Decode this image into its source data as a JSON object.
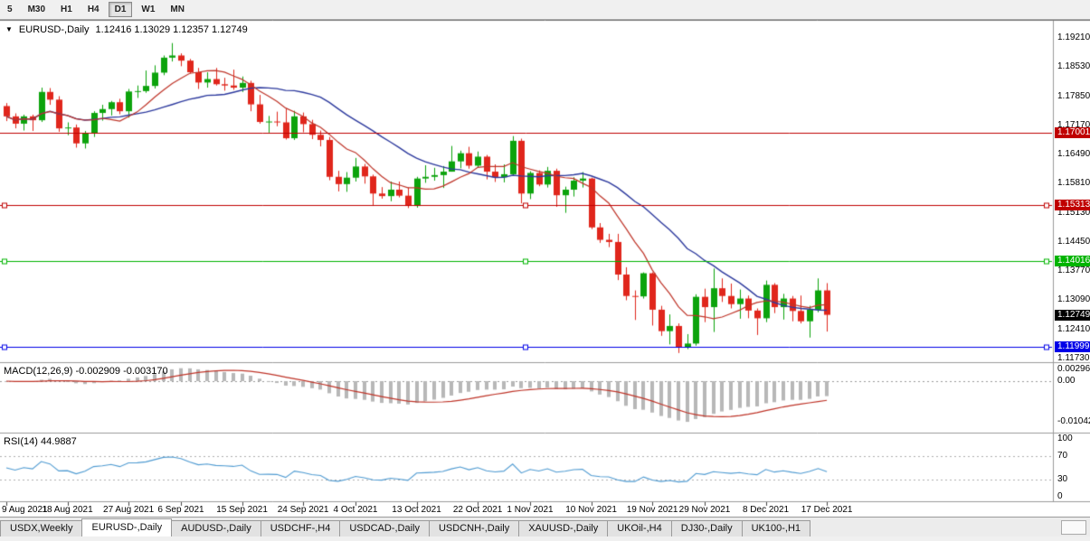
{
  "toolbar": {
    "timeframes": [
      "5",
      "M30",
      "H1",
      "H4",
      "D1",
      "W1",
      "MN"
    ],
    "active": "D1"
  },
  "header": {
    "dropdown_icon": "▼",
    "title": "EURUSD-,Daily",
    "ohlc_text": "1.12416 1.13029 1.12357 1.12749"
  },
  "tabs": [
    {
      "label": "USDX,Weekly",
      "active": false
    },
    {
      "label": "EURUSD-,Daily",
      "active": true
    },
    {
      "label": "AUDUSD-,Daily",
      "active": false
    },
    {
      "label": "USDCHF-,H4",
      "active": false
    },
    {
      "label": "USDCAD-,Daily",
      "active": false
    },
    {
      "label": "USDCNH-,Daily",
      "active": false
    },
    {
      "label": "XAUUSD-,Daily",
      "active": false
    },
    {
      "label": "UKOil-,H4",
      "active": false
    },
    {
      "label": "DJ30-,Daily",
      "active": false
    },
    {
      "label": "UK100-,H1",
      "active": false
    }
  ],
  "chart_data": {
    "type": "candlestick",
    "symbol": "EURUSD-",
    "timeframe": "Daily",
    "ohlc_current": {
      "open": "1.12416",
      "high": "1.13029",
      "low": "1.12357",
      "close": "1.12749"
    },
    "colors": {
      "bull": "#0ca30c",
      "bear": "#e0261c"
    },
    "y_axis": {
      "max": 1.1921,
      "min": 1.1173,
      "tick_labels": [
        "1.19210",
        "1.18530",
        "1.17850",
        "1.17170",
        "1.16490",
        "1.15810",
        "1.15130",
        "1.14450",
        "1.13770",
        "1.13090",
        "1.12410",
        "1.11730"
      ]
    },
    "x_ticks": [
      {
        "index": 0,
        "label": "9 Aug 2021"
      },
      {
        "index": 7,
        "label": "18 Aug 2021"
      },
      {
        "index": 14,
        "label": "27 Aug 2021"
      },
      {
        "index": 20,
        "label": "6 Sep 2021"
      },
      {
        "index": 27,
        "label": "15 Sep 2021"
      },
      {
        "index": 34,
        "label": "24 Sep 2021"
      },
      {
        "index": 40,
        "label": "4 Oct 2021"
      },
      {
        "index": 47,
        "label": "13 Oct 2021"
      },
      {
        "index": 54,
        "label": "22 Oct 2021"
      },
      {
        "index": 60,
        "label": "1 Nov 2021"
      },
      {
        "index": 67,
        "label": "10 Nov 2021"
      },
      {
        "index": 74,
        "label": "19 Nov 2021"
      },
      {
        "index": 80,
        "label": "29 Nov 2021"
      },
      {
        "index": 87,
        "label": "8 Dec 2021"
      },
      {
        "index": 94,
        "label": "17 Dec 2021"
      }
    ],
    "hlines": [
      {
        "price": 1.17001,
        "label": "1.17001",
        "color": "#c00000",
        "selected": false
      },
      {
        "price": 1.15313,
        "label": "1.15313",
        "color": "#c00000",
        "selected": true
      },
      {
        "price": 1.14016,
        "label": "1.14016",
        "color": "#00b400",
        "selected": true
      },
      {
        "price": 1.11999,
        "label": "1.11999",
        "color": "#0000e8",
        "selected": true
      }
    ],
    "current_price": {
      "value": 1.12749,
      "label": "1.12749",
      "color": "#000000"
    },
    "overlays": [
      {
        "name": "ma-fast",
        "type": "sma",
        "period": 8,
        "color": "#bf3428"
      },
      {
        "name": "ma-slow",
        "type": "sma",
        "period": 20,
        "color": "#2d3a9e"
      }
    ],
    "indicators": [
      {
        "name": "MACD",
        "label": "MACD(12,26,9) -0.002909 -0.003170",
        "params": [
          12,
          26,
          9
        ],
        "axis_labels": [
          "0.002966",
          "0.00",
          "-0.01042"
        ],
        "histogram_color": "#b8b8b8",
        "signal_color": "#bf3428"
      },
      {
        "name": "RSI",
        "label": "RSI(14) 44.9887",
        "period": 14,
        "axis_labels": [
          "100",
          "70",
          "30",
          "0"
        ],
        "levels": [
          70,
          30
        ],
        "color": "#4f9bd2"
      }
    ],
    "candles": [
      [
        1.1762,
        1.1769,
        1.1727,
        1.1738
      ],
      [
        1.1738,
        1.1745,
        1.171,
        1.1721
      ],
      [
        1.1721,
        1.1742,
        1.1705,
        1.1738
      ],
      [
        1.1738,
        1.1742,
        1.1704,
        1.1729
      ],
      [
        1.1729,
        1.1805,
        1.1725,
        1.1795
      ],
      [
        1.1795,
        1.1804,
        1.1765,
        1.1777
      ],
      [
        1.1777,
        1.1785,
        1.1702,
        1.171
      ],
      [
        1.171,
        1.1724,
        1.1694,
        1.1712
      ],
      [
        1.1712,
        1.1719,
        1.1665,
        1.1675
      ],
      [
        1.1675,
        1.1704,
        1.1663,
        1.1698
      ],
      [
        1.1698,
        1.175,
        1.169,
        1.1746
      ],
      [
        1.1746,
        1.1765,
        1.1728,
        1.1755
      ],
      [
        1.1755,
        1.1774,
        1.174,
        1.1771
      ],
      [
        1.1771,
        1.1779,
        1.1743,
        1.175
      ],
      [
        1.175,
        1.1802,
        1.1735,
        1.1796
      ],
      [
        1.1796,
        1.181,
        1.1781,
        1.1797
      ],
      [
        1.1797,
        1.1845,
        1.1793,
        1.1809
      ],
      [
        1.1809,
        1.1857,
        1.1803,
        1.184
      ],
      [
        1.184,
        1.188,
        1.1834,
        1.1875
      ],
      [
        1.1875,
        1.1909,
        1.1866,
        1.188
      ],
      [
        1.188,
        1.1885,
        1.1855,
        1.1868
      ],
      [
        1.1868,
        1.1872,
        1.1838,
        1.1841
      ],
      [
        1.1841,
        1.1851,
        1.1802,
        1.1817
      ],
      [
        1.1817,
        1.1841,
        1.1805,
        1.1825
      ],
      [
        1.1825,
        1.1851,
        1.181,
        1.1813
      ],
      [
        1.1813,
        1.1828,
        1.1798,
        1.181
      ],
      [
        1.181,
        1.1847,
        1.18,
        1.1805
      ],
      [
        1.1805,
        1.1831,
        1.1795,
        1.1816
      ],
      [
        1.1816,
        1.1821,
        1.175,
        1.1766
      ],
      [
        1.1766,
        1.1788,
        1.1721,
        1.1725
      ],
      [
        1.1725,
        1.1739,
        1.17,
        1.1726
      ],
      [
        1.1726,
        1.1749,
        1.1715,
        1.1724
      ],
      [
        1.1724,
        1.1756,
        1.1684,
        1.1687
      ],
      [
        1.1687,
        1.1751,
        1.1683,
        1.1738
      ],
      [
        1.1738,
        1.1747,
        1.1701,
        1.172
      ],
      [
        1.172,
        1.173,
        1.1685,
        1.1695
      ],
      [
        1.1695,
        1.1705,
        1.1668,
        1.1683
      ],
      [
        1.1683,
        1.169,
        1.1589,
        1.1597
      ],
      [
        1.1597,
        1.1611,
        1.1563,
        1.158
      ],
      [
        1.158,
        1.1608,
        1.1562,
        1.1595
      ],
      [
        1.1595,
        1.1641,
        1.1586,
        1.1621
      ],
      [
        1.1621,
        1.1627,
        1.1581,
        1.1598
      ],
      [
        1.1598,
        1.1602,
        1.1529,
        1.1558
      ],
      [
        1.1558,
        1.1573,
        1.1546,
        1.1552
      ],
      [
        1.1552,
        1.1586,
        1.154,
        1.1567
      ],
      [
        1.1567,
        1.1586,
        1.1549,
        1.1553
      ],
      [
        1.1553,
        1.1572,
        1.1524,
        1.1529
      ],
      [
        1.1529,
        1.1597,
        1.1525,
        1.1593
      ],
      [
        1.1593,
        1.1624,
        1.1583,
        1.1597
      ],
      [
        1.1597,
        1.1618,
        1.1588,
        1.1601
      ],
      [
        1.1601,
        1.1622,
        1.1571,
        1.1609
      ],
      [
        1.1609,
        1.1669,
        1.1609,
        1.1633
      ],
      [
        1.1633,
        1.1658,
        1.1617,
        1.1652
      ],
      [
        1.1652,
        1.1667,
        1.1616,
        1.1623
      ],
      [
        1.1623,
        1.1656,
        1.1619,
        1.1644
      ],
      [
        1.1644,
        1.1648,
        1.1591,
        1.1609
      ],
      [
        1.1609,
        1.1626,
        1.1585,
        1.1596
      ],
      [
        1.1596,
        1.1626,
        1.1584,
        1.1603
      ],
      [
        1.1603,
        1.1692,
        1.1599,
        1.1681
      ],
      [
        1.1681,
        1.1686,
        1.1535,
        1.1558
      ],
      [
        1.1558,
        1.161,
        1.1545,
        1.1606
      ],
      [
        1.1606,
        1.1612,
        1.1575,
        1.1579
      ],
      [
        1.1579,
        1.162,
        1.1572,
        1.1611
      ],
      [
        1.1611,
        1.1616,
        1.1527,
        1.1554
      ],
      [
        1.1554,
        1.1574,
        1.1513,
        1.1567
      ],
      [
        1.1567,
        1.1596,
        1.1551,
        1.1588
      ],
      [
        1.1588,
        1.1608,
        1.1572,
        1.1593
      ],
      [
        1.1593,
        1.1595,
        1.1475,
        1.1479
      ],
      [
        1.1479,
        1.1489,
        1.1443,
        1.145
      ],
      [
        1.145,
        1.1464,
        1.1433,
        1.1445
      ],
      [
        1.1445,
        1.1464,
        1.1356,
        1.1369
      ],
      [
        1.1369,
        1.1386,
        1.1309,
        1.1319
      ],
      [
        1.1319,
        1.1332,
        1.1263,
        1.1318
      ],
      [
        1.1318,
        1.1374,
        1.1313,
        1.1372
      ],
      [
        1.1372,
        1.1374,
        1.125,
        1.1287
      ],
      [
        1.1287,
        1.1296,
        1.1226,
        1.1237
      ],
      [
        1.1237,
        1.1276,
        1.1206,
        1.1249
      ],
      [
        1.1249,
        1.1255,
        1.1186,
        1.12
      ],
      [
        1.12,
        1.123,
        1.1195,
        1.1208
      ],
      [
        1.1208,
        1.1323,
        1.1203,
        1.1317
      ],
      [
        1.1317,
        1.1336,
        1.1258,
        1.1293
      ],
      [
        1.1293,
        1.1383,
        1.1235,
        1.1337
      ],
      [
        1.1337,
        1.136,
        1.1305,
        1.1319
      ],
      [
        1.1319,
        1.1348,
        1.129,
        1.13
      ],
      [
        1.13,
        1.1334,
        1.1266,
        1.1313
      ],
      [
        1.1313,
        1.132,
        1.1267,
        1.1285
      ],
      [
        1.1285,
        1.129,
        1.1228,
        1.1267
      ],
      [
        1.1267,
        1.1355,
        1.1258,
        1.1345
      ],
      [
        1.1345,
        1.1349,
        1.1279,
        1.1293
      ],
      [
        1.1293,
        1.1324,
        1.1264,
        1.1313
      ],
      [
        1.1313,
        1.1319,
        1.126,
        1.1284
      ],
      [
        1.1284,
        1.132,
        1.1255,
        1.126
      ],
      [
        1.126,
        1.1296,
        1.1222,
        1.1287
      ],
      [
        1.1287,
        1.136,
        1.1281,
        1.1332
      ],
      [
        1.1332,
        1.1349,
        1.1236,
        1.1275
      ]
    ]
  }
}
